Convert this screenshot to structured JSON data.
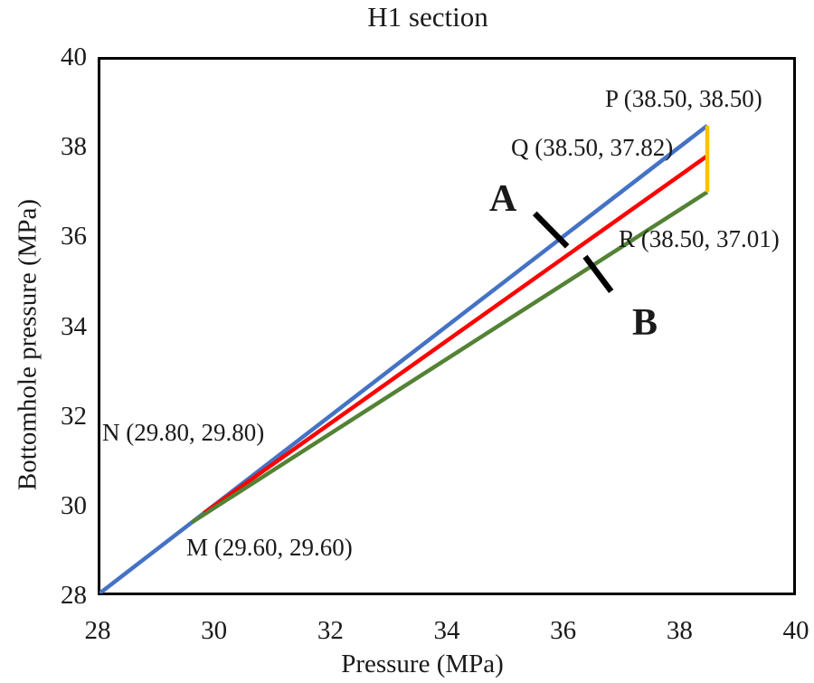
{
  "chart_data": {
    "type": "line",
    "title": "H1 section",
    "xlabel": "Pressure (MPa)",
    "ylabel": "Bottomhole pressure (MPa)",
    "xlim": [
      28,
      40
    ],
    "ylim": [
      28,
      40
    ],
    "x_ticks": [
      "28",
      "30",
      "32",
      "34",
      "36",
      "38",
      "40"
    ],
    "y_ticks": [
      "28",
      "30",
      "32",
      "34",
      "36",
      "38",
      "40"
    ],
    "grid": false,
    "legend": "none",
    "frame_color": "#000000",
    "series": [
      {
        "name": "line-MP-blue",
        "color": "#4472C4",
        "width": 4.5,
        "points": [
          [
            28.0,
            28.0
          ],
          [
            38.5,
            38.5
          ]
        ]
      },
      {
        "name": "line-NQ-red",
        "color": "#FF0000",
        "width": 4.5,
        "points": [
          [
            29.8,
            29.8
          ],
          [
            38.5,
            37.82
          ]
        ]
      },
      {
        "name": "line-MR-green",
        "color": "#548235",
        "width": 4.5,
        "points": [
          [
            29.6,
            29.6
          ],
          [
            38.5,
            37.01
          ]
        ]
      },
      {
        "name": "connector-PQR-yellow",
        "color": "#FFC000",
        "width": 4.5,
        "points": [
          [
            38.5,
            38.5
          ],
          [
            38.5,
            37.01
          ]
        ]
      }
    ],
    "annotation_lines": [
      {
        "name": "marker-A-dash",
        "color": "#000000",
        "width": 6.5,
        "points": [
          [
            35.52,
            36.53
          ],
          [
            36.08,
            35.79
          ]
        ]
      },
      {
        "name": "marker-B-dash",
        "color": "#000000",
        "width": 6.5,
        "points": [
          [
            36.39,
            35.56
          ],
          [
            36.84,
            34.78
          ]
        ]
      }
    ],
    "point_labels": {
      "P": "P (38.50, 38.50)",
      "Q": "Q (38.50, 37.82)",
      "R": "R (38.50, 37.01)",
      "N": "N (29.80, 29.80)",
      "M": "M (29.60, 29.60)",
      "A": "A",
      "B": "B"
    }
  }
}
